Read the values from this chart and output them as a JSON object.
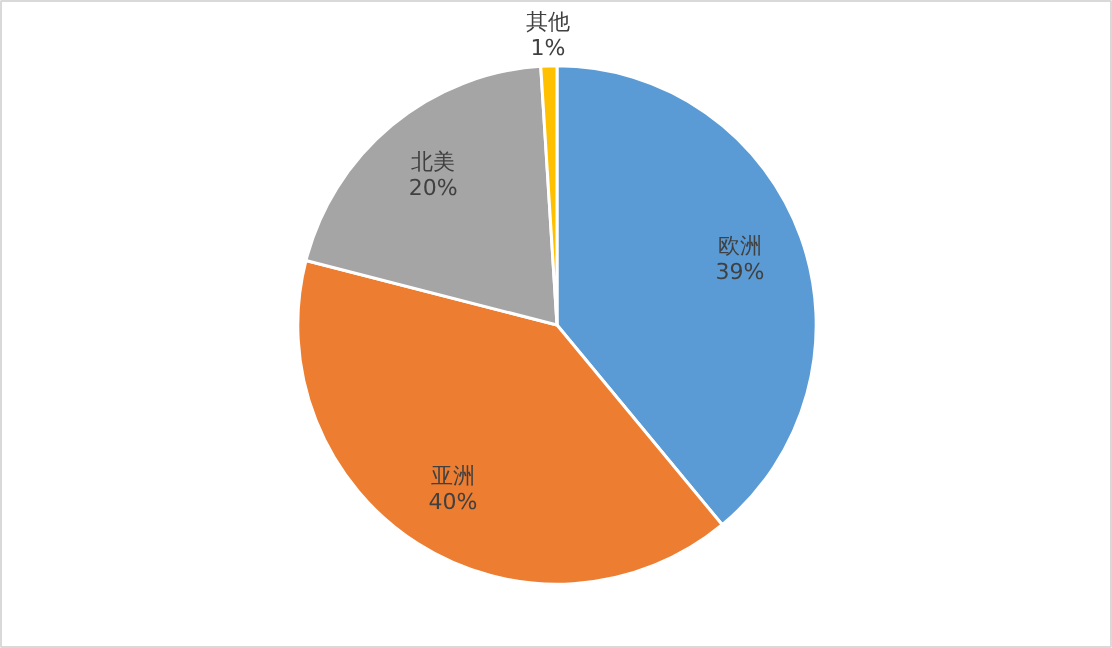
{
  "chart_data": {
    "type": "pie",
    "categories": [
      "欧洲",
      "亚洲",
      "北美",
      "其他"
    ],
    "values": [
      39,
      40,
      20,
      1
    ],
    "colors": [
      "#5b9bd5",
      "#ed7d31",
      "#a5a5a5",
      "#ffc000"
    ],
    "value_labels": [
      "39%",
      "40%",
      "20%",
      "1%"
    ],
    "legend": false
  }
}
